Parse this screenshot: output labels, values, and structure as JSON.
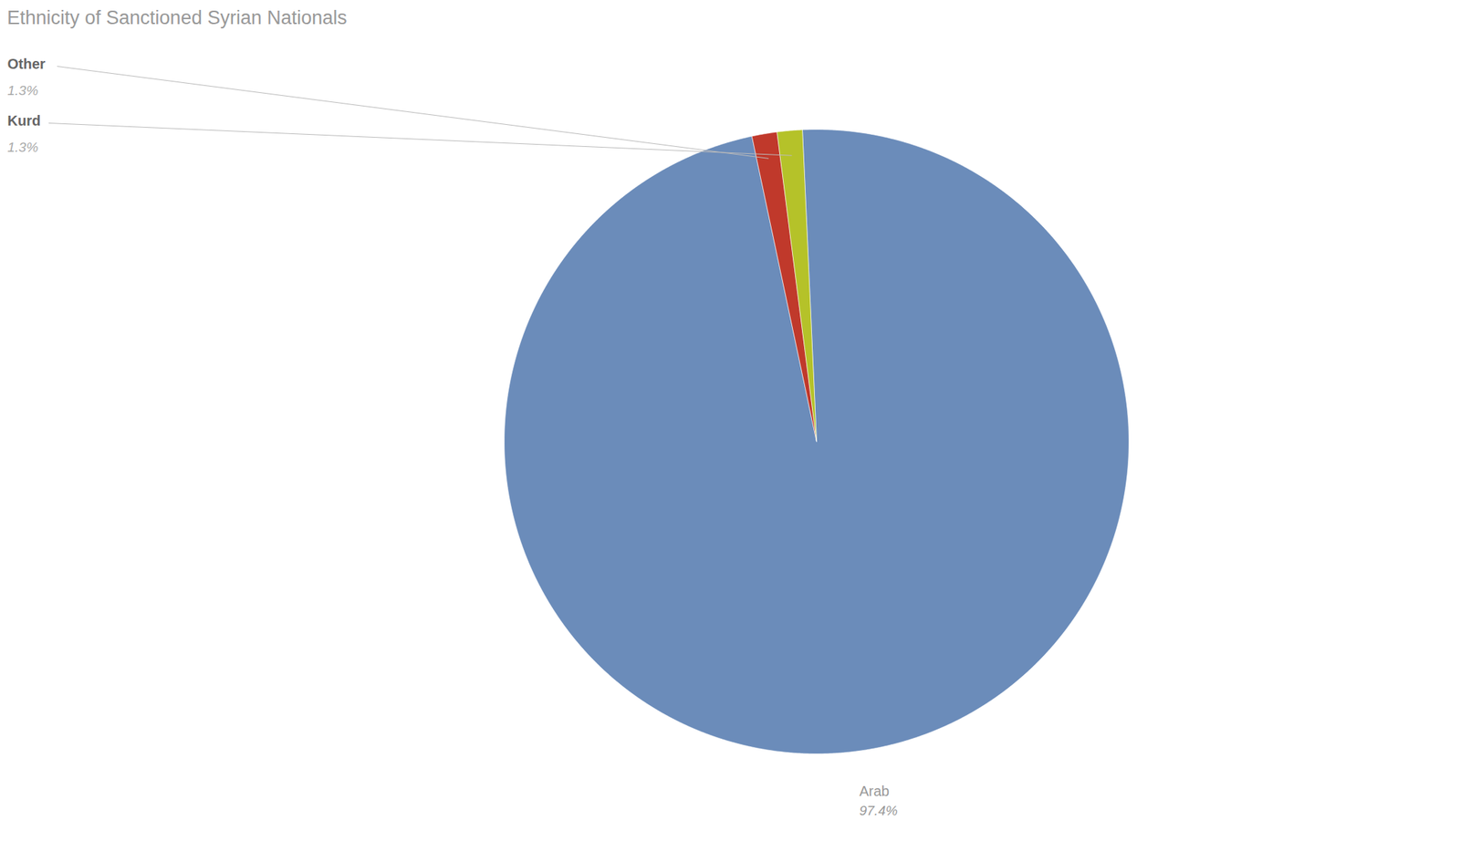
{
  "chart_data": {
    "type": "pie",
    "title": "Ethnicity of Sanctioned Syrian Nationals",
    "categories": [
      "Arab",
      "Other",
      "Kurd"
    ],
    "values": [
      97.4,
      1.3,
      1.3
    ],
    "colors": [
      "#6b8cba",
      "#c0392b",
      "#b5c229"
    ],
    "value_labels": [
      "97.4%",
      "1.3%",
      "1.3%"
    ],
    "data_labels": true
  }
}
